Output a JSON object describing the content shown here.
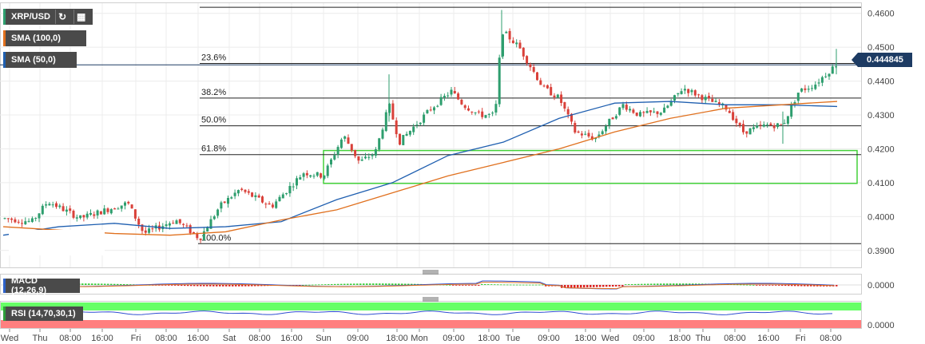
{
  "header": {
    "symbol": "XRP/USD",
    "refresh_icon": "refresh-icon",
    "calendar_icon": "calendar-icon"
  },
  "indicators": {
    "sma100": {
      "label": "SMA (100,0)",
      "color": "#e0701e"
    },
    "sma50": {
      "label": "SMA (50,0)",
      "color": "#1f5fb0"
    },
    "macd": {
      "label": "MACD (12,26,9)"
    },
    "rsi": {
      "label": "RSI (14,70,30,1)"
    }
  },
  "last_price": "0.444845",
  "colors": {
    "up": "#2e9e6e",
    "down": "#d9413a",
    "rsi_overbought": "#66ff66",
    "rsi_oversold": "#ff7f7f"
  },
  "chart_data": {
    "type": "candlestick",
    "y_axis": {
      "range": [
        0.385,
        0.463
      ],
      "ticks": [
        "0.4600",
        "0.4500",
        "0.4400",
        "0.4300",
        "0.4200",
        "0.4100",
        "0.4000",
        "0.3900"
      ]
    },
    "x_axis": {
      "ticks": [
        "Wed",
        "Thu",
        "08:00",
        "16:00",
        "Fri",
        "08:00",
        "16:00",
        "Sat",
        "08:00",
        "16:00",
        "Sun",
        "09:00",
        "18:00",
        "Mon",
        "09:00",
        "18:00",
        "Tue",
        "09:00",
        "18:00",
        "Wed",
        "09:00",
        "18:00",
        "Thu",
        "08:00",
        "16:00",
        "Fri",
        "08:00"
      ]
    },
    "fibonacci": [
      {
        "label": "100.0%",
        "price": 0.392
      },
      {
        "label": "61.8%",
        "price": 0.4183
      },
      {
        "label": "50.0%",
        "price": 0.4268
      },
      {
        "label": "38.2%",
        "price": 0.435
      },
      {
        "label": "23.6%",
        "price": 0.4452
      },
      {
        "label": "",
        "price": 0.4618
      }
    ],
    "support_zone": {
      "price_top": 0.4195,
      "price_bottom": 0.4098
    },
    "series": [
      {
        "name": "SMA (50,0)",
        "values": [
          0.3945,
          0.397,
          0.398,
          0.3965,
          0.397,
          0.3985,
          0.405,
          0.41,
          0.418,
          0.422,
          0.429,
          0.4335,
          0.434,
          0.433,
          0.433,
          0.4325
        ]
      },
      {
        "name": "SMA (100,0)",
        "values": [
          0.397,
          0.396,
          0.395,
          0.3945,
          0.3955,
          0.399,
          0.402,
          0.407,
          0.412,
          0.416,
          0.42,
          0.425,
          0.429,
          0.432,
          0.433,
          0.434
        ]
      }
    ],
    "macd_range": [
      -0.002,
      0.002
    ],
    "macd_ticks": [
      "0.0000"
    ],
    "rsi_ticks": [
      "0.0000"
    ]
  }
}
